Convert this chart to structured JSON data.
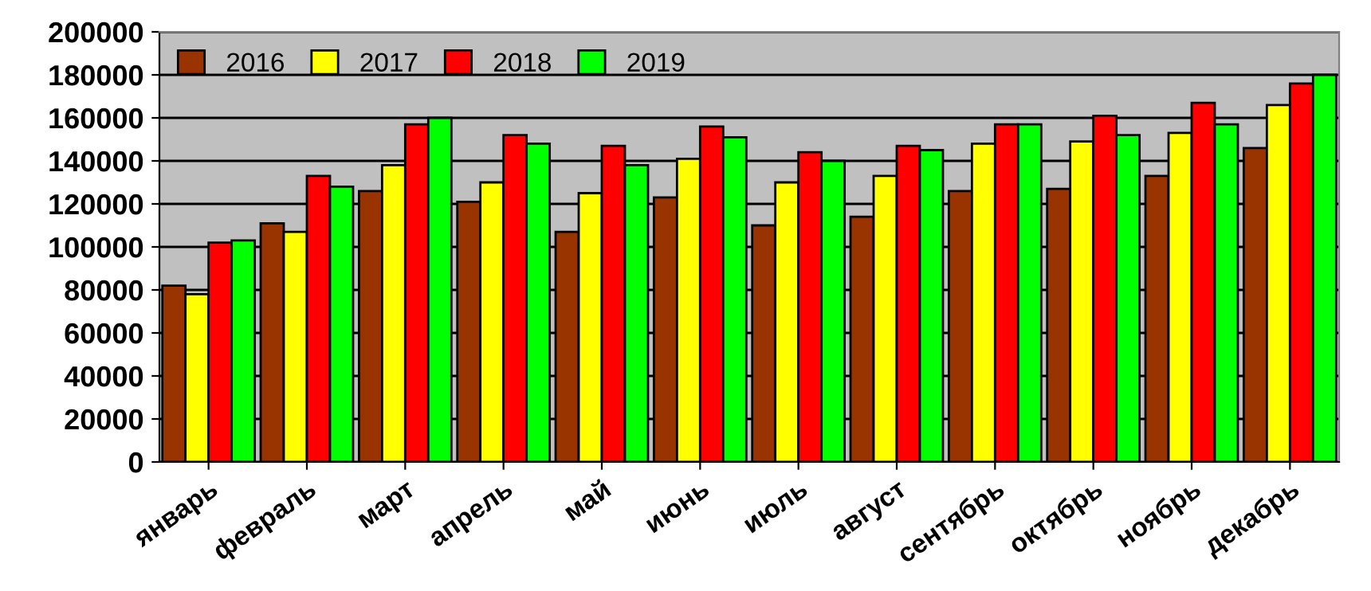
{
  "chart_data": {
    "type": "bar",
    "categories": [
      "январь",
      "февраль",
      "март",
      "апрель",
      "май",
      "июнь",
      "июль",
      "август",
      "сентябрь",
      "октябрь",
      "ноябрь",
      "декабрь"
    ],
    "series": [
      {
        "name": "2016",
        "color": "#993300",
        "values": [
          82000,
          111000,
          126000,
          121000,
          107000,
          123000,
          110000,
          114000,
          126000,
          127000,
          133000,
          146000
        ]
      },
      {
        "name": "2017",
        "color": "#ffff00",
        "values": [
          78000,
          107000,
          138000,
          130000,
          125000,
          141000,
          130000,
          133000,
          148000,
          149000,
          153000,
          166000
        ]
      },
      {
        "name": "2018",
        "color": "#ff0000",
        "values": [
          102000,
          133000,
          157000,
          152000,
          147000,
          156000,
          144000,
          147000,
          157000,
          161000,
          167000,
          176000
        ]
      },
      {
        "name": "2019",
        "color": "#00ff00",
        "values": [
          103000,
          128000,
          160000,
          148000,
          138000,
          151000,
          140000,
          145000,
          157000,
          152000,
          157000,
          180000
        ]
      }
    ],
    "ylim": [
      0,
      200000
    ],
    "yticks": [
      0,
      20000,
      40000,
      60000,
      80000,
      100000,
      120000,
      140000,
      160000,
      180000,
      200000
    ],
    "grid": "y",
    "legend": "top left"
  }
}
